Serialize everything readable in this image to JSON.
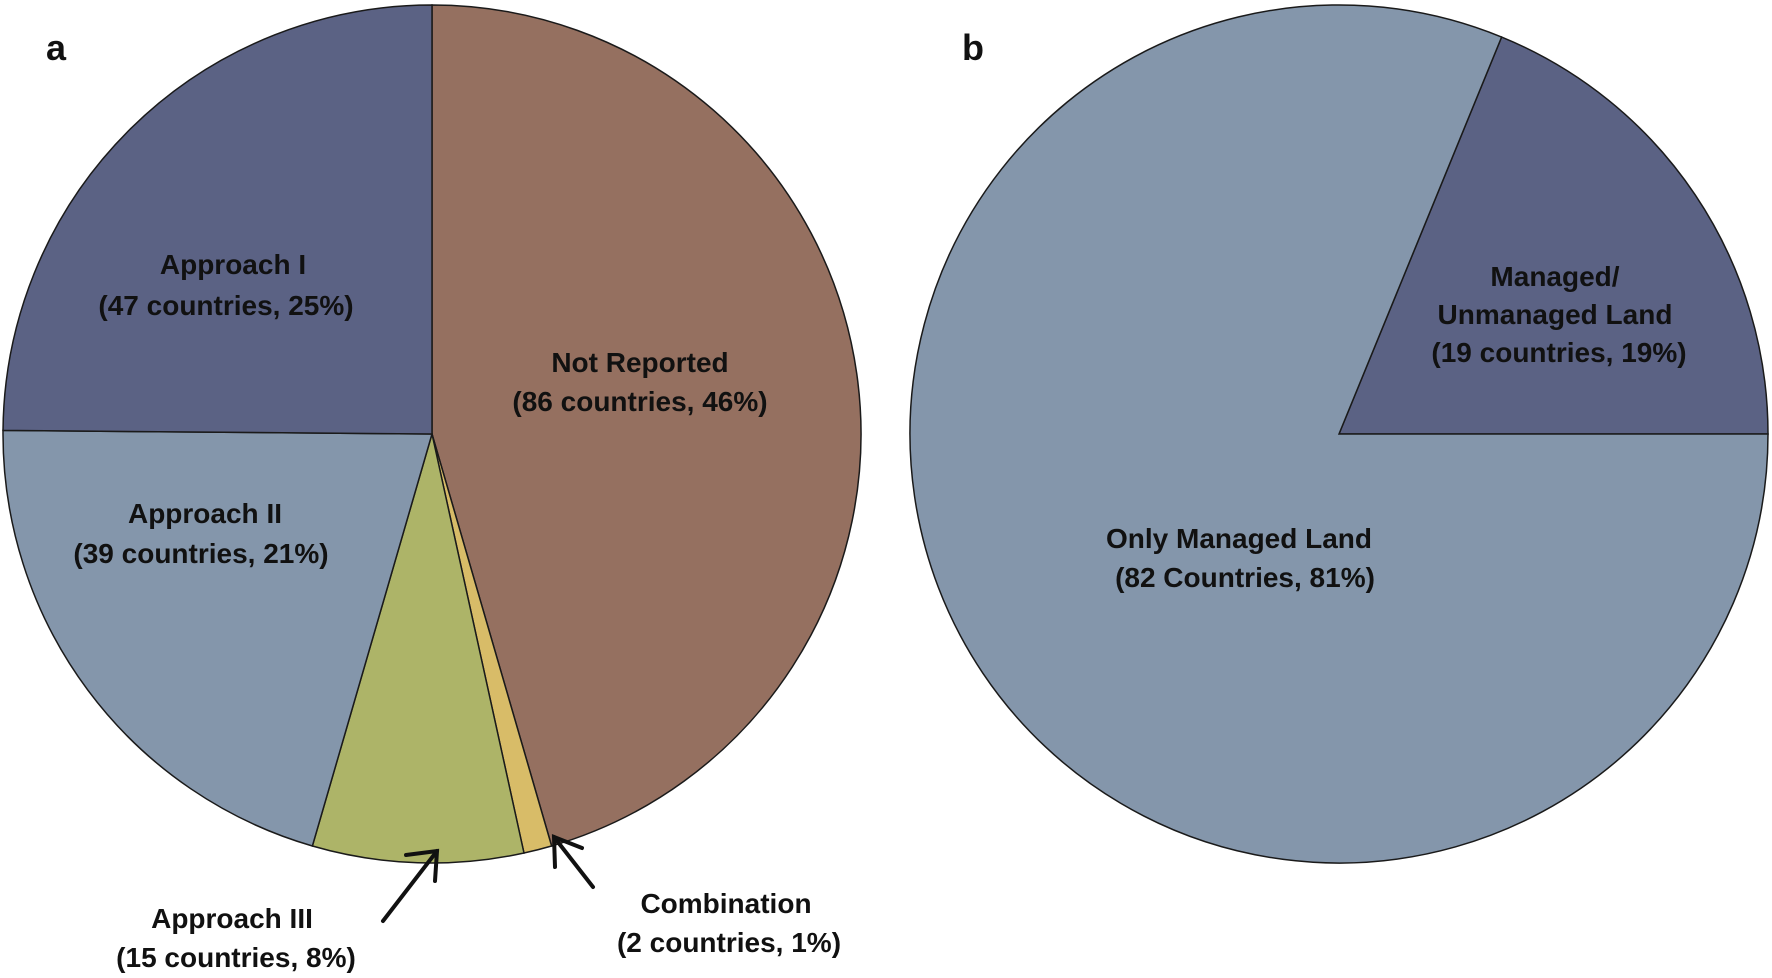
{
  "chart_data": [
    {
      "type": "pie",
      "panel_label": "a",
      "slices": [
        {
          "label": "Not Reported",
          "detail": "(86 countries, 46%)",
          "countries": 86,
          "percent": 46,
          "color": "#957060"
        },
        {
          "label": "Combination",
          "detail": "(2 countries, 1%)",
          "countries": 2,
          "percent": 1,
          "color": "#d8bc68"
        },
        {
          "label": "Approach III",
          "detail": "(15 countries, 8%)",
          "countries": 15,
          "percent": 8,
          "color": "#adb468"
        },
        {
          "label": "Approach II",
          "detail": "(39 countries, 21%)",
          "countries": 39,
          "percent": 21,
          "color": "#8496ab"
        },
        {
          "label": "Approach I",
          "detail": "(47 countries, 25%)",
          "countries": 47,
          "percent": 25,
          "color": "#5b6284"
        }
      ],
      "start_direction": "12 o'clock, clockwise"
    },
    {
      "type": "pie",
      "panel_label": "b",
      "slices": [
        {
          "label": "Managed/ Unmanaged Land",
          "label_lines": [
            "Managed/",
            "Unmanaged Land"
          ],
          "detail": "(19 countries, 19%)",
          "countries": 19,
          "percent": 19,
          "color": "#5b6284"
        },
        {
          "label": "Only Managed Land",
          "detail": "(82 Countries, 81%)",
          "countries": 82,
          "percent": 81,
          "color": "#8496ab"
        }
      ],
      "start_direction": "3 o'clock, counter-clockwise"
    }
  ]
}
